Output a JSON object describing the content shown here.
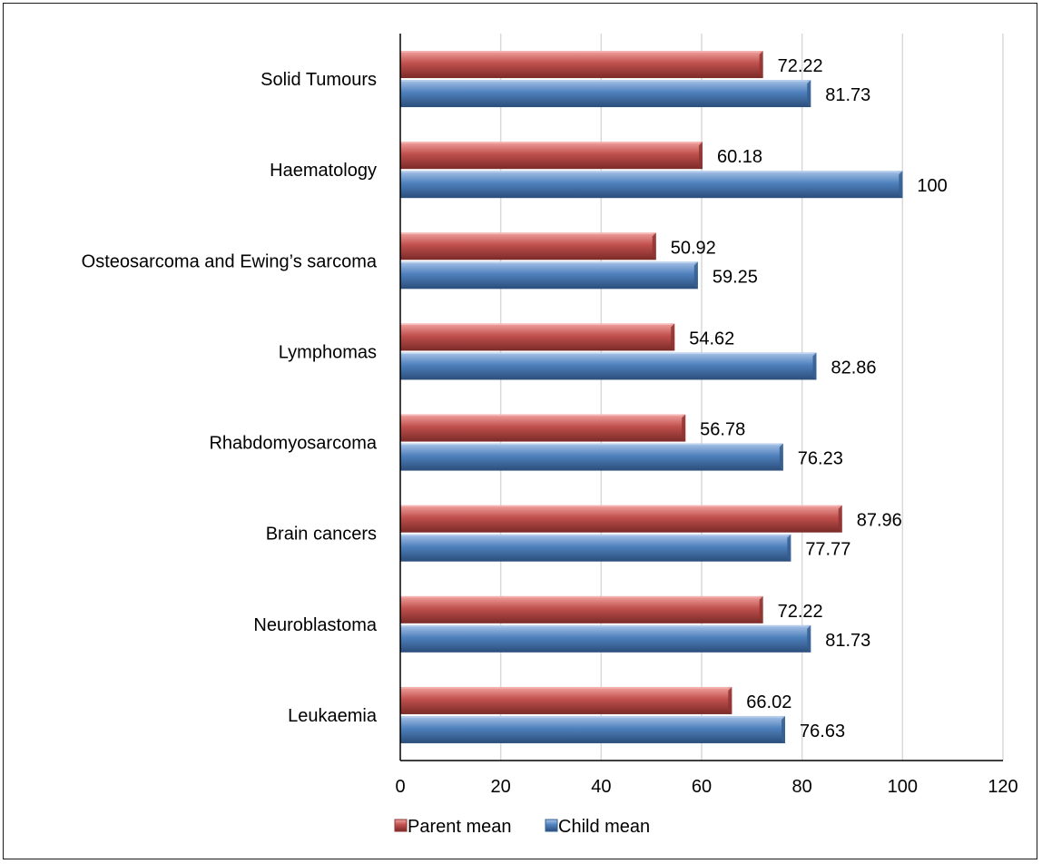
{
  "chart_data": {
    "type": "bar",
    "orientation": "horizontal",
    "title": "",
    "xlabel": "",
    "ylabel": "",
    "categories": [
      "Leukaemia",
      "Neuroblastoma",
      "Brain cancers",
      "Rhabdomyosarcoma",
      "Lymphomas",
      "Osteosarcoma and Ewing’s sarcoma",
      "Haematology",
      "Solid Tumours"
    ],
    "series": [
      {
        "name": "Parent mean",
        "color": "#c0504d",
        "values": [
          66.02,
          72.22,
          87.96,
          56.78,
          54.62,
          50.92,
          60.18,
          72.22
        ],
        "labels": [
          "66.02",
          "72.22",
          "87.96",
          "56.78",
          "54.62",
          "50.92",
          "60.18",
          "72.22"
        ]
      },
      {
        "name": "Child mean",
        "color": "#4f81bd",
        "values": [
          76.63,
          81.73,
          77.77,
          76.23,
          82.86,
          59.25,
          100,
          81.73
        ],
        "labels": [
          "76.63",
          "81.73",
          "77.77",
          "76.23",
          "82.86",
          "59.25",
          "100",
          "81.73"
        ]
      }
    ],
    "xlim": [
      0,
      120
    ],
    "xticks": [
      "0",
      "20",
      "40",
      "60",
      "80",
      "100",
      "120"
    ],
    "grid": "vertical",
    "legend": "bottom"
  }
}
